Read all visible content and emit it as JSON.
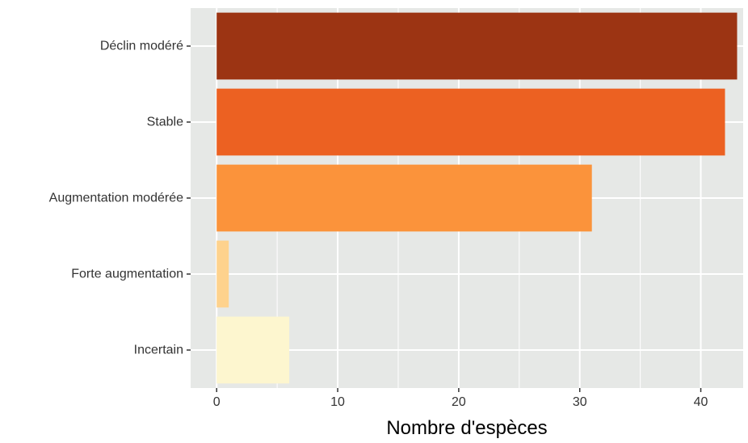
{
  "chart_data": {
    "type": "bar",
    "orientation": "horizontal",
    "categories": [
      "Déclin modéré",
      "Stable",
      "Augmentation modérée",
      "Forte augmentation",
      "Incertain"
    ],
    "values": [
      43,
      42,
      31,
      1,
      6
    ],
    "colors": [
      "#9c3413",
      "#ec6122",
      "#fb933b",
      "#fed28d",
      "#fdf6cf"
    ],
    "xlabel": "Nombre d'espèces",
    "ylabel": "",
    "xlim": [
      -2.15,
      43.5
    ],
    "xticks": [
      0,
      10,
      20,
      30,
      40
    ],
    "xtick_labels": [
      "0",
      "10",
      "20",
      "30",
      "40"
    ],
    "grid": true,
    "panel_background": "#e6e8e6",
    "grid_color": "#ffffff"
  }
}
